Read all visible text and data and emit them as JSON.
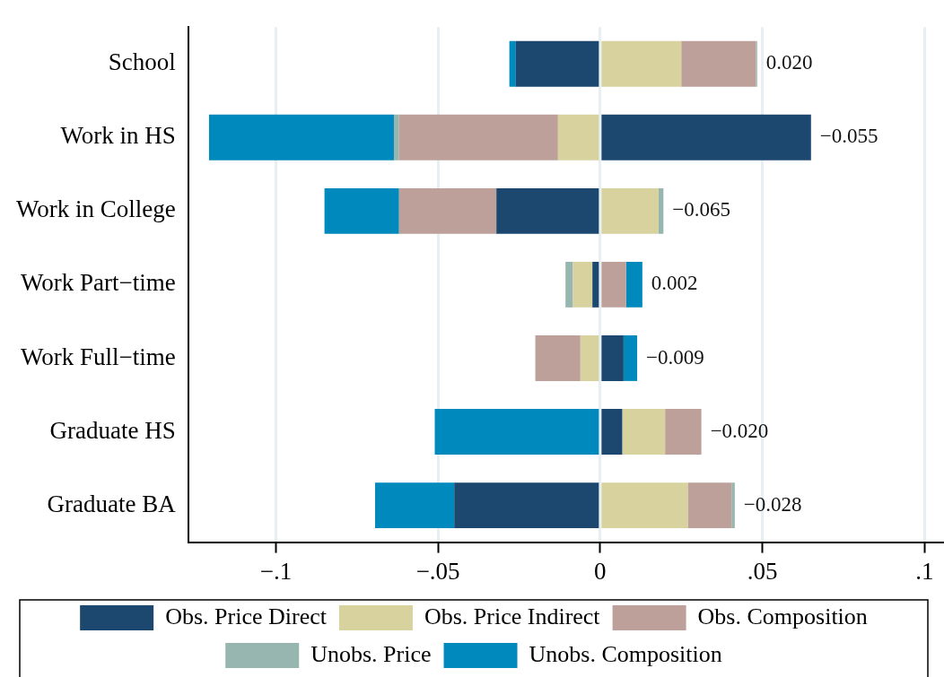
{
  "chart_data": {
    "type": "bar",
    "orientation": "horizontal",
    "stacked": true,
    "categories": [
      "School",
      "Work in HS",
      "Work in College",
      "Work Part−time",
      "Work Full−time",
      "Graduate HS",
      "Graduate BA"
    ],
    "series": [
      {
        "name": "Obs. Price Direct",
        "color": "#1c4870",
        "values": [
          -0.026,
          0.065,
          -0.032,
          -0.0024,
          0.0072,
          0.0068,
          -0.045
        ]
      },
      {
        "name": "Obs. Price Indirect",
        "color": "#d7d29e",
        "values": [
          0.025,
          -0.013,
          0.018,
          -0.006,
          -0.0061,
          0.0132,
          0.027
        ]
      },
      {
        "name": "Obs. Composition",
        "color": "#bea09a",
        "values": [
          0.023,
          -0.049,
          -0.03,
          0.008,
          -0.0139,
          0.0112,
          0.0135
        ]
      },
      {
        "name": "Unobs. Price",
        "color": "#97b6b0",
        "values": [
          0.0004,
          -0.0016,
          0.0015,
          -0.0023,
          null,
          null,
          0.001
        ]
      },
      {
        "name": "Unobs. Composition",
        "color": "#0089bc",
        "values": [
          -0.002,
          -0.057,
          -0.023,
          0.005,
          0.0042,
          -0.051,
          -0.0244
        ]
      }
    ],
    "totals": [
      "0.020",
      "−0.055",
      "−0.065",
      "0.002",
      "−0.009",
      "−0.020",
      "−0.028"
    ],
    "xlim": [
      -0.127,
      0.106
    ],
    "xticks": [
      {
        "value": -0.1,
        "label": "−.1"
      },
      {
        "value": -0.05,
        "label": "−.05"
      },
      0,
      {
        "value": 0.05,
        "label": ".05"
      },
      {
        "value": 0.1,
        "label": ".1"
      }
    ],
    "grid": "x",
    "legend": "bottom"
  }
}
